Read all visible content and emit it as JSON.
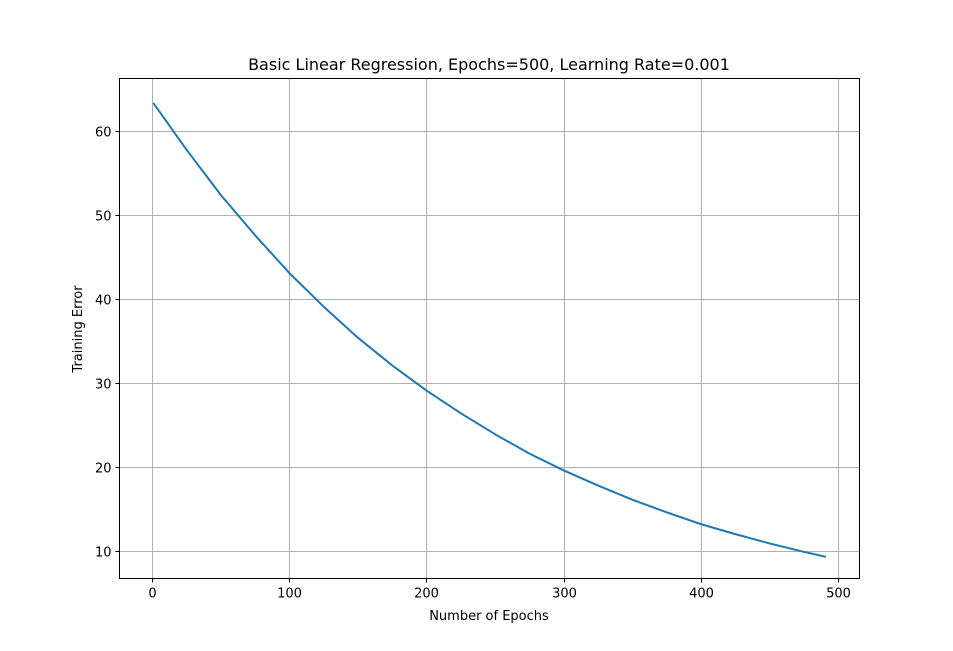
{
  "chart_data": {
    "type": "line",
    "title": "Basic Linear Regression, Epochs=500, Learning Rate=0.001",
    "xlabel": "Number of Epochs",
    "ylabel": "Training Error",
    "xlim": [
      -24,
      516
    ],
    "ylim": [
      6.7,
      66.3
    ],
    "xticks": [
      0,
      100,
      200,
      300,
      400,
      500
    ],
    "yticks": [
      10,
      20,
      30,
      40,
      50,
      60
    ],
    "xtick_labels": [
      "0",
      "100",
      "200",
      "300",
      "400",
      "500"
    ],
    "ytick_labels": [
      "10",
      "20",
      "30",
      "40",
      "50",
      "60"
    ],
    "grid": true,
    "line_color": "#1f77b4",
    "series": [
      {
        "x": [
          1,
          25,
          50,
          75,
          100,
          125,
          150,
          175,
          200,
          225,
          250,
          275,
          300,
          325,
          350,
          375,
          400,
          425,
          450,
          475,
          491
        ],
        "values": [
          63.3,
          57.8,
          52.4,
          47.6,
          43.1,
          39.1,
          35.4,
          32.1,
          29.1,
          26.4,
          23.9,
          21.6,
          19.6,
          17.8,
          16.1,
          14.6,
          13.2,
          12.0,
          10.9,
          9.9,
          9.3
        ]
      }
    ]
  }
}
